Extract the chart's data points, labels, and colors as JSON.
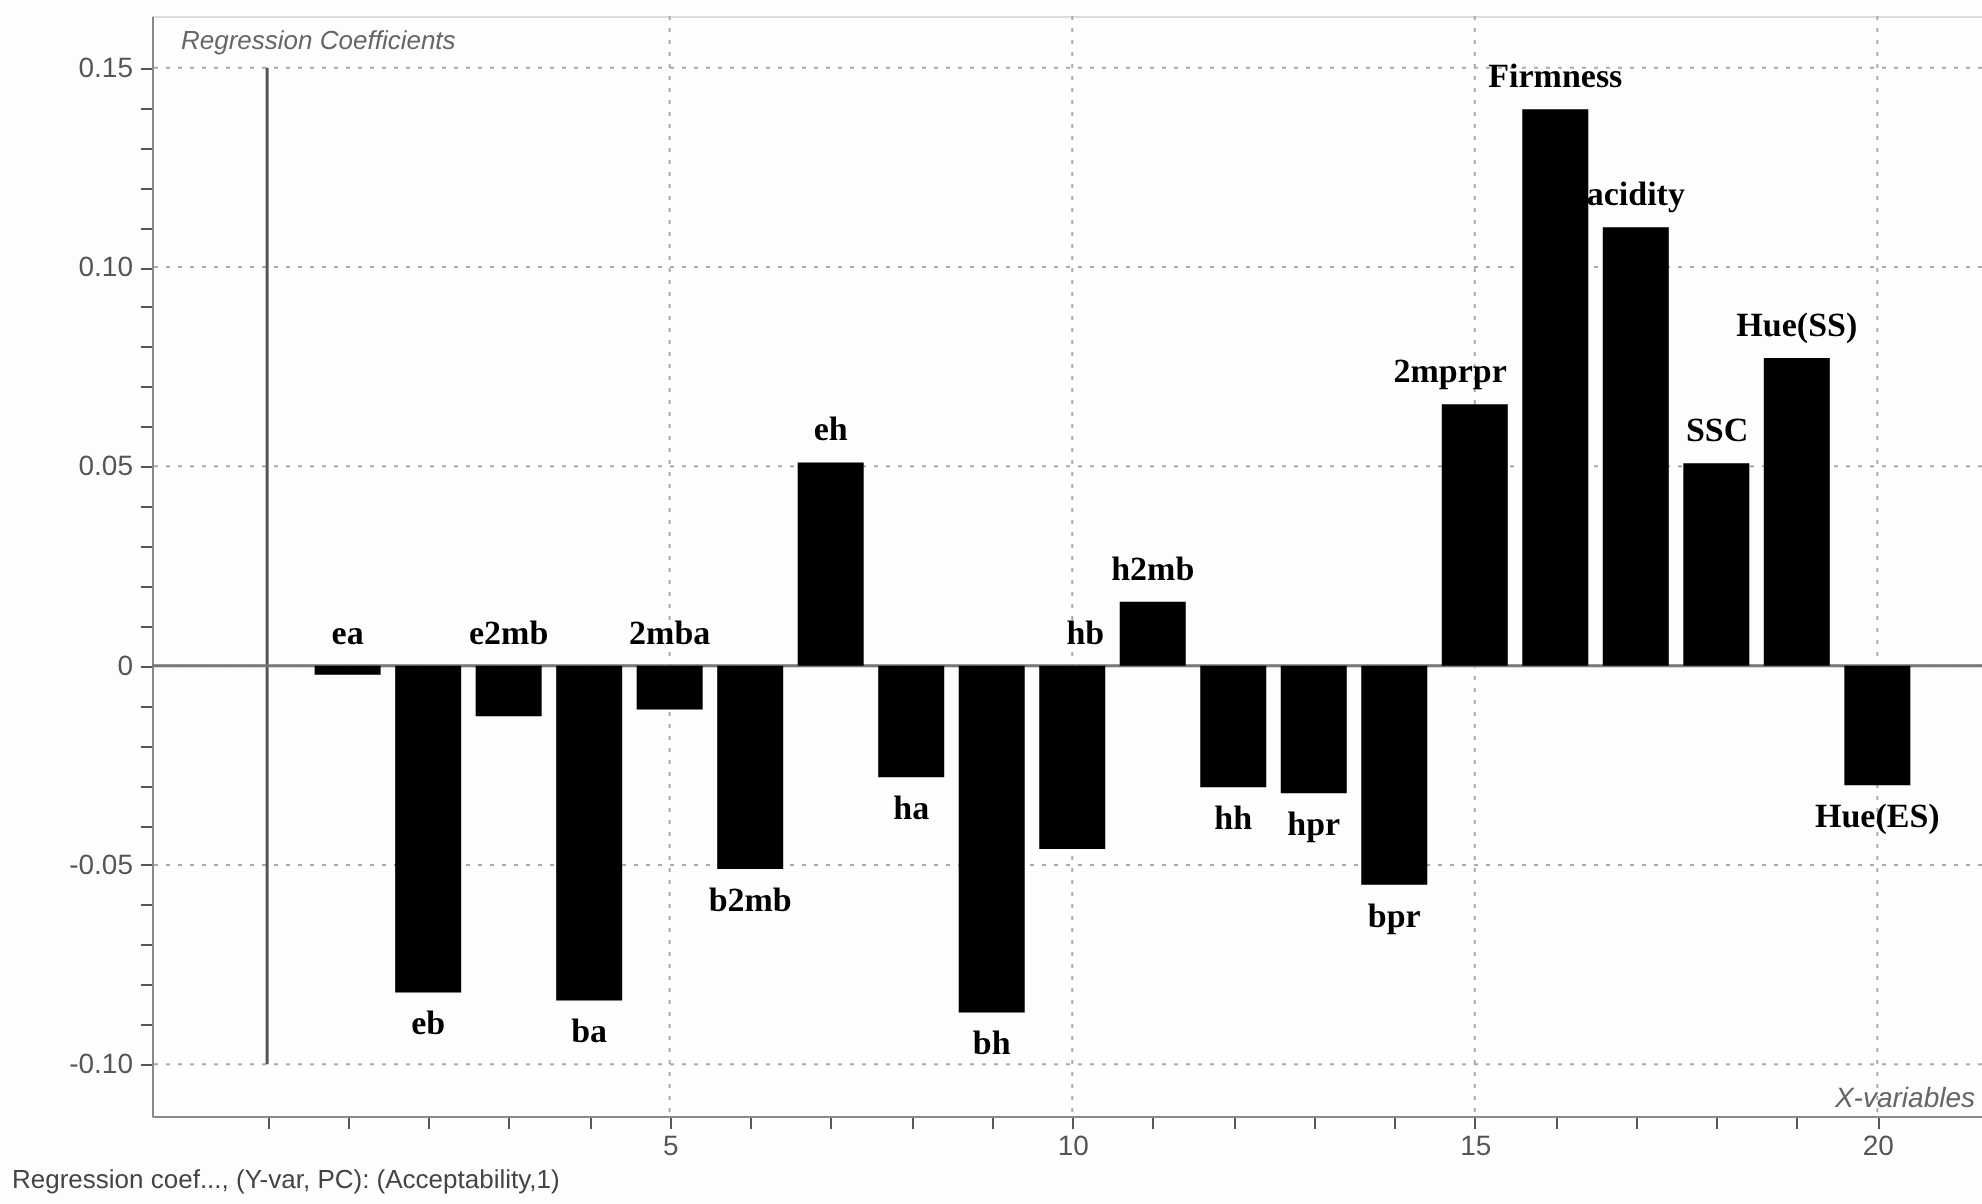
{
  "chart_data": {
    "type": "bar",
    "xlabel": "X-variables",
    "ylabel": "Regression Coefficients",
    "x": [
      1,
      2,
      3,
      4,
      5,
      6,
      7,
      8,
      9,
      10,
      11,
      12,
      13,
      14,
      15,
      16,
      17,
      18,
      19,
      20
    ],
    "series": [
      {
        "color": "#000000",
        "values": [
          -0.0023,
          -0.082,
          -0.0127,
          -0.084,
          -0.011,
          -0.051,
          0.051,
          -0.028,
          -0.087,
          -0.046,
          0.016,
          -0.0305,
          -0.032,
          -0.055,
          0.0656,
          0.1396,
          0.11,
          0.0508,
          0.0772,
          -0.03
        ]
      }
    ],
    "xlim": [
      -1.43,
      21.3
    ],
    "ylim": [
      -0.113,
      0.163
    ],
    "xticks": [
      {
        "value": 0,
        "label": null
      },
      {
        "value": 1,
        "label": null
      },
      {
        "value": 2,
        "label": null
      },
      {
        "value": 3,
        "label": null
      },
      {
        "value": 4,
        "label": null
      },
      5,
      {
        "value": 6,
        "label": null
      },
      {
        "value": 7,
        "label": null
      },
      {
        "value": 8,
        "label": null
      },
      {
        "value": 9,
        "label": null
      },
      10,
      {
        "value": 11,
        "label": null
      },
      {
        "value": 12,
        "label": null
      },
      {
        "value": 13,
        "label": null
      },
      {
        "value": 14,
        "label": null
      },
      15,
      {
        "value": 16,
        "label": null
      },
      {
        "value": 17,
        "label": null
      },
      {
        "value": 18,
        "label": null
      },
      {
        "value": 19,
        "label": null
      },
      20
    ],
    "yticks": [
      {
        "value": -0.1,
        "label": "-0.10"
      },
      {
        "value": -0.09,
        "label": null
      },
      {
        "value": -0.08,
        "label": null
      },
      {
        "value": -0.07,
        "label": null
      },
      {
        "value": -0.06,
        "label": null
      },
      -0.05,
      {
        "value": -0.04,
        "label": null
      },
      {
        "value": -0.03,
        "label": null
      },
      {
        "value": -0.02,
        "label": null
      },
      {
        "value": -0.01,
        "label": null
      },
      0,
      {
        "value": 0.01,
        "label": null
      },
      {
        "value": 0.02,
        "label": null
      },
      {
        "value": 0.03,
        "label": null
      },
      {
        "value": 0.04,
        "label": null
      },
      0.05,
      {
        "value": 0.06,
        "label": null
      },
      {
        "value": 0.07,
        "label": null
      },
      {
        "value": 0.08,
        "label": null
      },
      {
        "value": 0.09,
        "label": null
      },
      {
        "value": 0.1,
        "label": "0.10"
      },
      {
        "value": 0.11,
        "label": null
      },
      {
        "value": 0.12,
        "label": null
      },
      {
        "value": 0.13,
        "label": null
      },
      {
        "value": 0.14,
        "label": null
      },
      0.15
    ],
    "grid": true,
    "ref_lines": [
      {
        "axis": "x",
        "value": 0,
        "color": "#555555"
      },
      {
        "axis": "y",
        "value": 0,
        "color": "#777777"
      }
    ],
    "annotations": [
      {
        "text": "ea",
        "x": 1,
        "y": 0
      },
      {
        "text": "eb",
        "x": 2,
        "y": -0.082
      },
      {
        "text": "e2mb",
        "x": 3,
        "y": 0
      },
      {
        "text": "ba",
        "x": 4,
        "y": -0.084
      },
      {
        "text": "2mba",
        "x": 5,
        "y": 0
      },
      {
        "text": "b2mb",
        "x": 6,
        "y": -0.051
      },
      {
        "text": "eh",
        "x": 7,
        "y": 0.051
      },
      {
        "text": "ha",
        "x": 8,
        "y": -0.028
      },
      {
        "text": "bh",
        "x": 9,
        "y": -0.087
      },
      {
        "text": "hb",
        "x": 10,
        "y": 0
      },
      {
        "text": "h2mb",
        "x": 11,
        "y": 0.016
      },
      {
        "text": "hh",
        "x": 12,
        "y": -0.0305
      },
      {
        "text": "hpr",
        "x": 13,
        "y": -0.032
      },
      {
        "text": "bpr",
        "x": 14,
        "y": -0.055
      },
      {
        "text": "2mprpr",
        "x": 15,
        "y": 0.0656
      },
      {
        "text": "Firmness",
        "x": 16,
        "y": 0.1396
      },
      {
        "text": "acidity",
        "x": 17,
        "y": 0.11
      },
      {
        "text": "SSC",
        "x": 18,
        "y": 0.0508
      },
      {
        "text": "Hue(SS)",
        "x": 19,
        "y": 0.0772
      },
      {
        "text": "Hue(ES)",
        "x": 20,
        "y": -0.03
      },
      "Regression coef..., (Y-var, PC): (Acceptability,1)"
    ]
  }
}
